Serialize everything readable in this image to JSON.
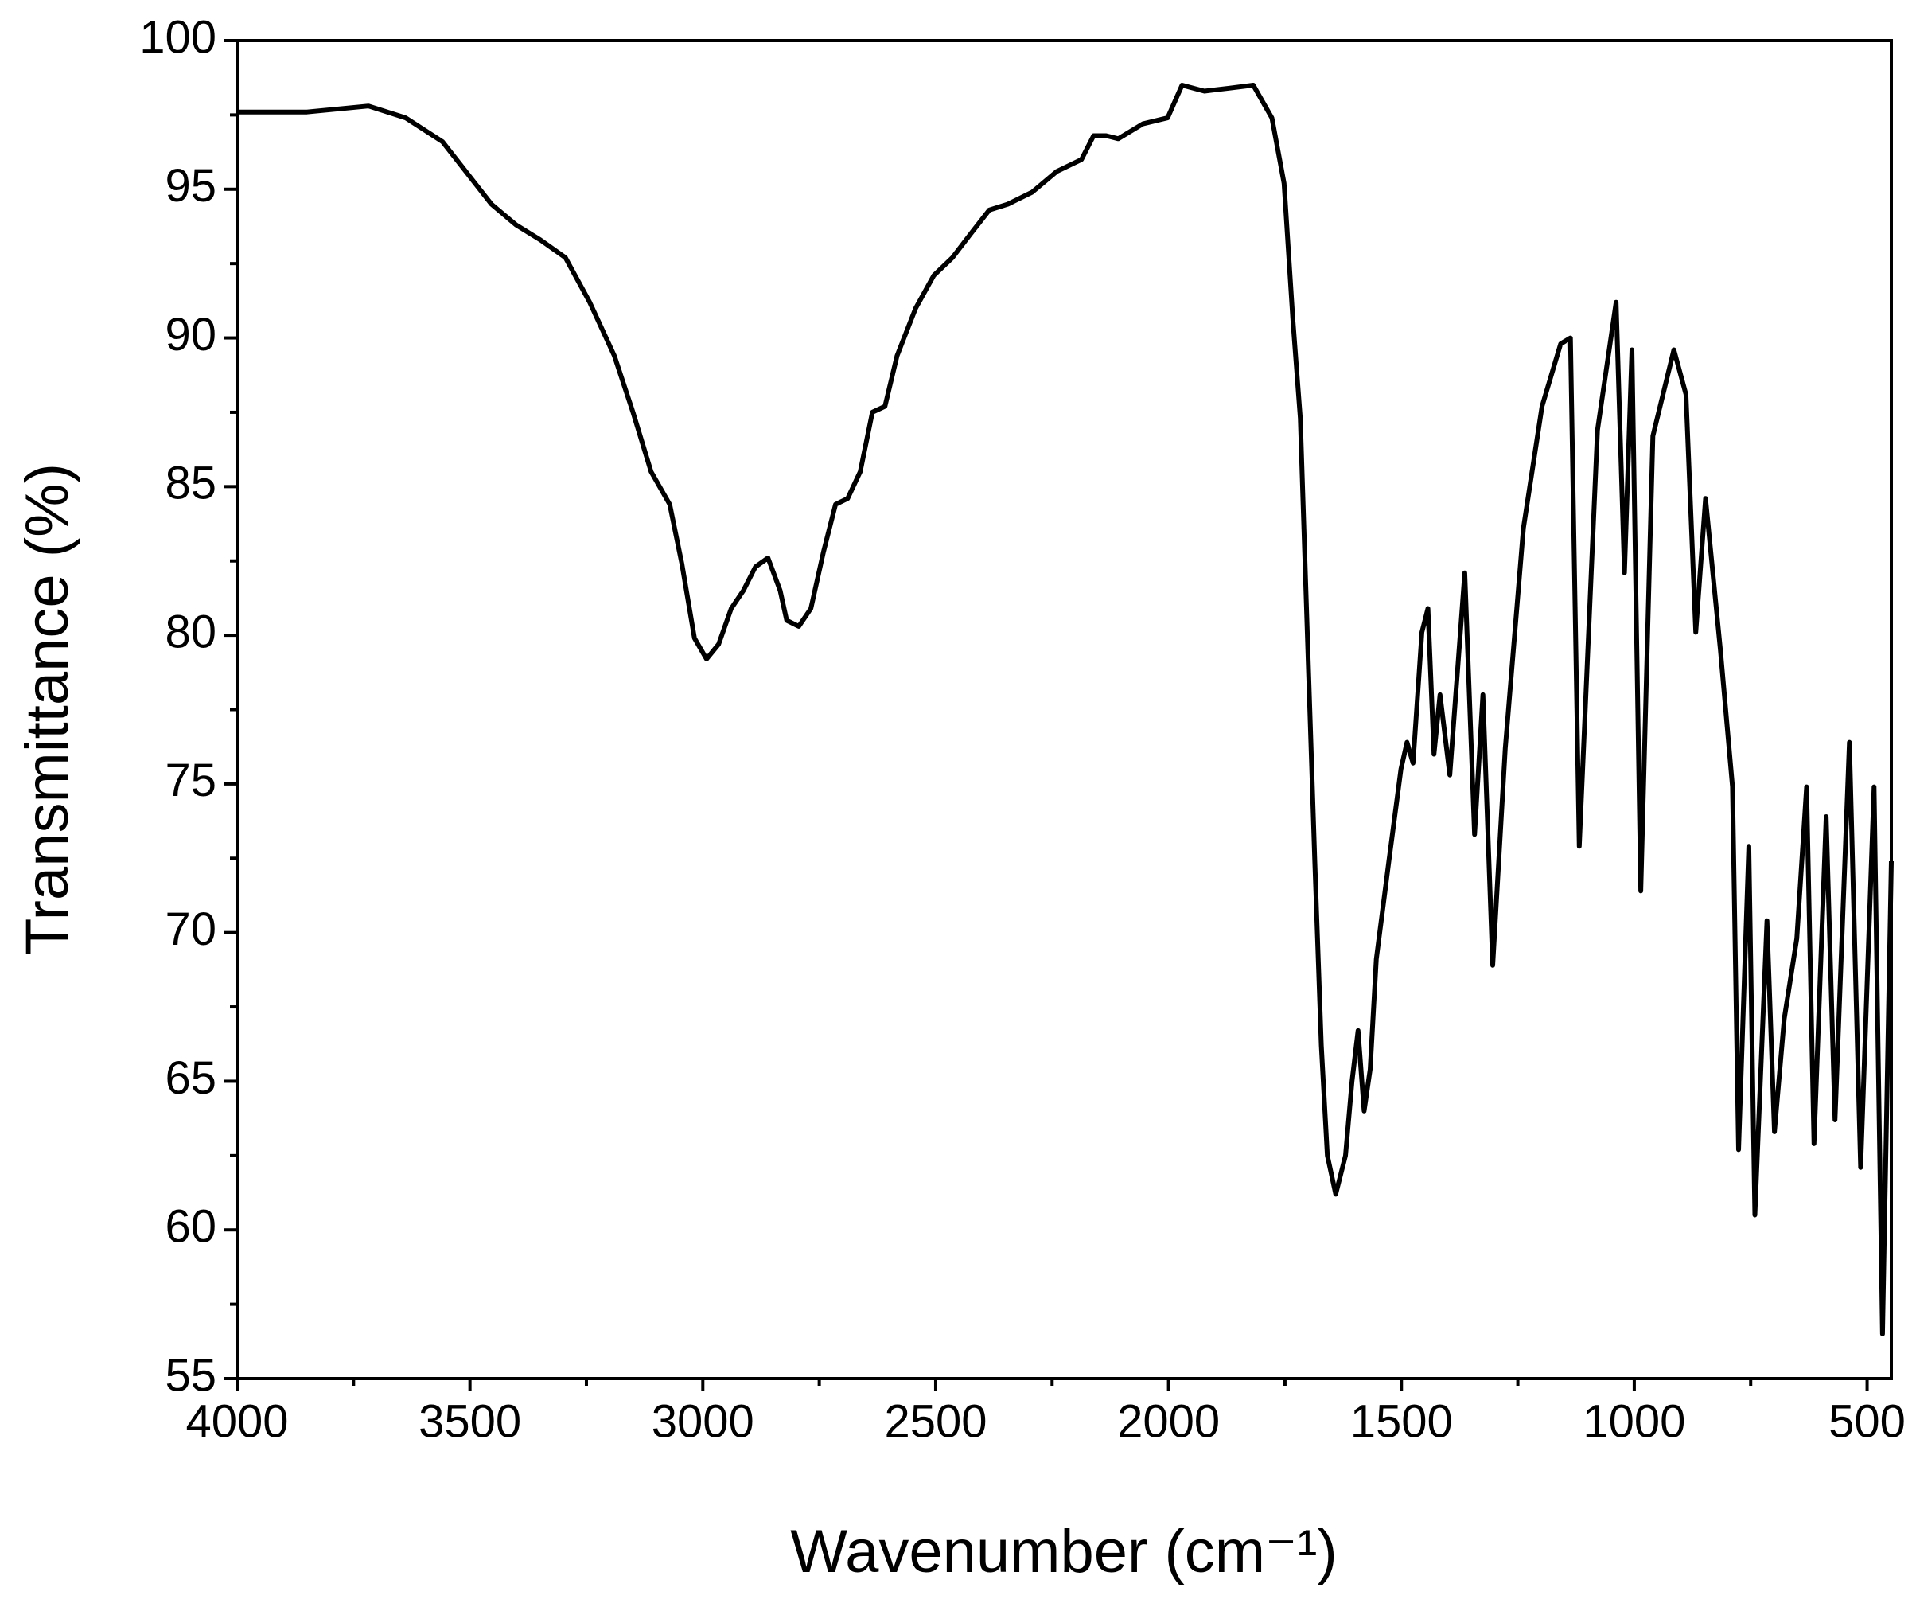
{
  "chart_data": {
    "type": "line",
    "x_label": "Wavenumber (cm⁻¹)",
    "y_label": "Transmittance (%)",
    "xlim": [
      4000,
      448
    ],
    "ylim": [
      55,
      100
    ],
    "xticks": [
      4000,
      3500,
      3000,
      2500,
      2000,
      1500,
      1000,
      500
    ],
    "xticks_minor": [
      3750,
      3250,
      2750,
      2250,
      1750,
      1250,
      750
    ],
    "yticks": [
      55,
      60,
      65,
      70,
      75,
      80,
      85,
      90,
      95,
      100
    ],
    "yticks_minor": [
      57.5,
      62.5,
      67.5,
      72.5,
      77.5,
      82.5,
      87.5,
      92.5,
      97.5
    ],
    "series": [
      {
        "color": "#000000",
        "x": [
          4000,
          3850,
          3718,
          3638,
          3559,
          3499,
          3454,
          3401,
          3349,
          3295,
          3243,
          3190,
          3150,
          3111,
          3071,
          3045,
          3018,
          2992,
          2966,
          2939,
          2913,
          2887,
          2860,
          2834,
          2820,
          2794,
          2768,
          2741,
          2715,
          2689,
          2662,
          2636,
          2609,
          2583,
          2543,
          2504,
          2464,
          2425,
          2385,
          2345,
          2293,
          2240,
          2187,
          2161,
          2134,
          2108,
          2055,
          2002,
          1971,
          1923,
          1870,
          1818,
          1778,
          1752,
          1733,
          1717,
          1699,
          1686,
          1672,
          1659,
          1641,
          1620,
          1606,
          1593,
          1580,
          1567,
          1554,
          1527,
          1501,
          1488,
          1475,
          1456,
          1443,
          1430,
          1417,
          1396,
          1364,
          1343,
          1325,
          1304,
          1277,
          1238,
          1198,
          1158,
          1137,
          1118,
          1079,
          1039,
          1021,
          1005,
          986,
          960,
          915,
          889,
          868,
          847,
          815,
          789,
          776,
          754,
          741,
          715,
          699,
          678,
          651,
          630,
          614,
          588,
          569,
          538,
          514,
          485,
          467,
          448
        ],
        "values": [
          97.6,
          97.6,
          97.8,
          97.4,
          96.6,
          95.4,
          94.5,
          93.8,
          93.3,
          92.7,
          91.2,
          89.4,
          87.5,
          85.5,
          84.4,
          82.4,
          79.9,
          79.2,
          79.7,
          80.9,
          81.5,
          82.3,
          82.6,
          81.5,
          80.5,
          80.3,
          80.9,
          82.8,
          84.4,
          84.6,
          85.5,
          87.5,
          87.7,
          89.4,
          91.0,
          92.1,
          92.7,
          93.5,
          94.3,
          94.5,
          94.9,
          95.6,
          96.0,
          96.8,
          96.8,
          96.7,
          97.2,
          97.4,
          98.5,
          98.3,
          98.4,
          98.5,
          97.4,
          95.2,
          90.6,
          87.3,
          78.6,
          72.4,
          66.2,
          62.5,
          61.2,
          62.5,
          65.0,
          66.7,
          64.0,
          65.4,
          69.1,
          72.4,
          75.5,
          76.4,
          75.7,
          80.1,
          80.9,
          76.0,
          78.0,
          75.3,
          82.1,
          73.3,
          78.0,
          68.9,
          76.2,
          83.6,
          87.7,
          89.8,
          90.0,
          72.9,
          86.9,
          91.2,
          82.1,
          89.6,
          71.4,
          86.7,
          89.6,
          88.1,
          80.1,
          84.6,
          79.5,
          74.9,
          62.7,
          72.9,
          60.5,
          70.4,
          63.3,
          67.1,
          69.8,
          74.9,
          62.9,
          73.9,
          63.7,
          76.4,
          62.1,
          74.9,
          56.5,
          72.4
        ]
      }
    ]
  }
}
